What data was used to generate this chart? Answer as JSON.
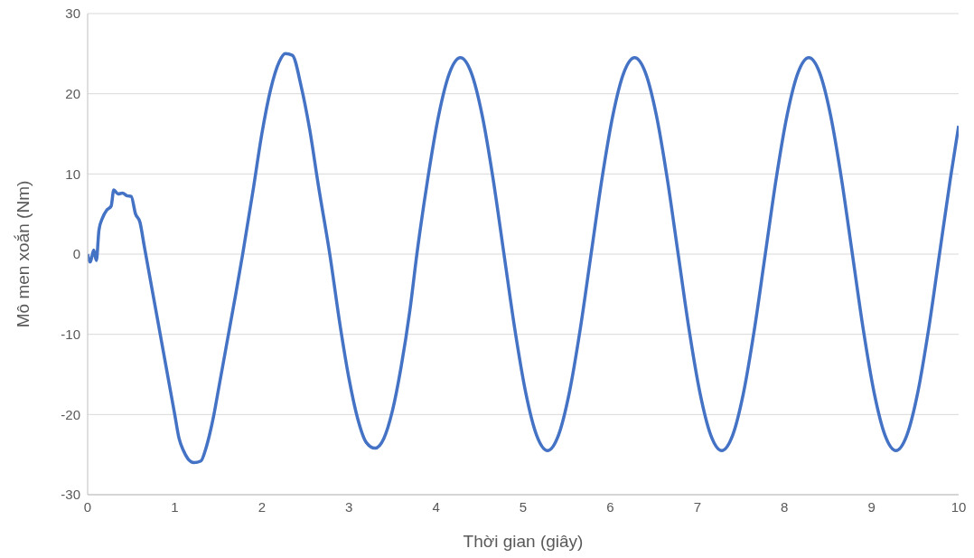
{
  "chart_data": {
    "type": "line",
    "xlabel": "Thời gian (giây)",
    "ylabel": "Mô men xoắn (Nm)",
    "xlim": [
      0,
      10
    ],
    "xticks": [
      0,
      1,
      2,
      3,
      4,
      5,
      6,
      7,
      8,
      9,
      10
    ],
    "ylim": [
      -30,
      30
    ],
    "yticks": [
      -30,
      -20,
      -10,
      0,
      10,
      20,
      30
    ],
    "grid": "y",
    "legend": false,
    "marker": "none",
    "line_style": "solid",
    "x": [
      0,
      0.03,
      0.07,
      0.1,
      0.13,
      0.17,
      0.22,
      0.27,
      0.3,
      0.35,
      0.4,
      0.45,
      0.5,
      0.55,
      0.6,
      0.65,
      0.7,
      0.75,
      0.8,
      0.85,
      0.9,
      0.95,
      1.0,
      1.05,
      1.1,
      1.15,
      1.22,
      1.3,
      1.35,
      1.4,
      1.45,
      1.5,
      1.6,
      1.7,
      1.78,
      1.9,
      2.0,
      2.1,
      2.2,
      2.27,
      2.35,
      2.45,
      2.55,
      2.65,
      2.78,
      2.9,
      3.0,
      3.1,
      3.2,
      3.3,
      3.4,
      3.5,
      3.6,
      3.7,
      3.78,
      3.905,
      4.03,
      4.155,
      4.28,
      4.405,
      4.53,
      4.655,
      4.78,
      4.905,
      5.03,
      5.155,
      5.28,
      5.405,
      5.53,
      5.655,
      5.78,
      5.905,
      6.03,
      6.155,
      6.28,
      6.405,
      6.53,
      6.655,
      6.78,
      6.905,
      7.03,
      7.155,
      7.28,
      7.405,
      7.53,
      7.655,
      7.78,
      7.905,
      8.03,
      8.155,
      8.28,
      8.405,
      8.53,
      8.655,
      8.78,
      8.905,
      9.03,
      9.155,
      9.28,
      9.405,
      9.53,
      9.655,
      9.78,
      9.905,
      10
    ],
    "series": [
      {
        "color": "#4472c4",
        "values": [
          0,
          -1,
          0.5,
          -0.8,
          3,
          4.5,
          5.5,
          6,
          8,
          7.5,
          7.6,
          7.3,
          7.2,
          5,
          4,
          1,
          -2,
          -5,
          -8,
          -11,
          -14,
          -17,
          -20,
          -23,
          -24.5,
          -25.5,
          -26,
          -25.8,
          -24.5,
          -22.5,
          -20,
          -17,
          -11,
          -5,
          0,
          8,
          15,
          20.5,
          24,
          25,
          24.8,
          21,
          15.5,
          8.5,
          0,
          -9,
          -15.5,
          -20.5,
          -23.5,
          -24.2,
          -23,
          -19.5,
          -14,
          -7,
          0,
          9.4,
          17.3,
          22.6,
          24.5,
          22.6,
          17.3,
          9.4,
          0,
          -9.4,
          -17.3,
          -22.6,
          -24.5,
          -22.6,
          -17.3,
          -9.4,
          0,
          9.4,
          17.3,
          22.6,
          24.5,
          22.6,
          17.3,
          9.4,
          0,
          -9.4,
          -17.3,
          -22.6,
          -24.5,
          -22.6,
          -17.3,
          -9.4,
          0,
          9.4,
          17.3,
          22.6,
          24.5,
          22.6,
          17.3,
          9.4,
          0,
          -9.4,
          -17.3,
          -22.6,
          -24.5,
          -22.6,
          -17.3,
          -9.4,
          0,
          9.4,
          16
        ]
      }
    ]
  }
}
